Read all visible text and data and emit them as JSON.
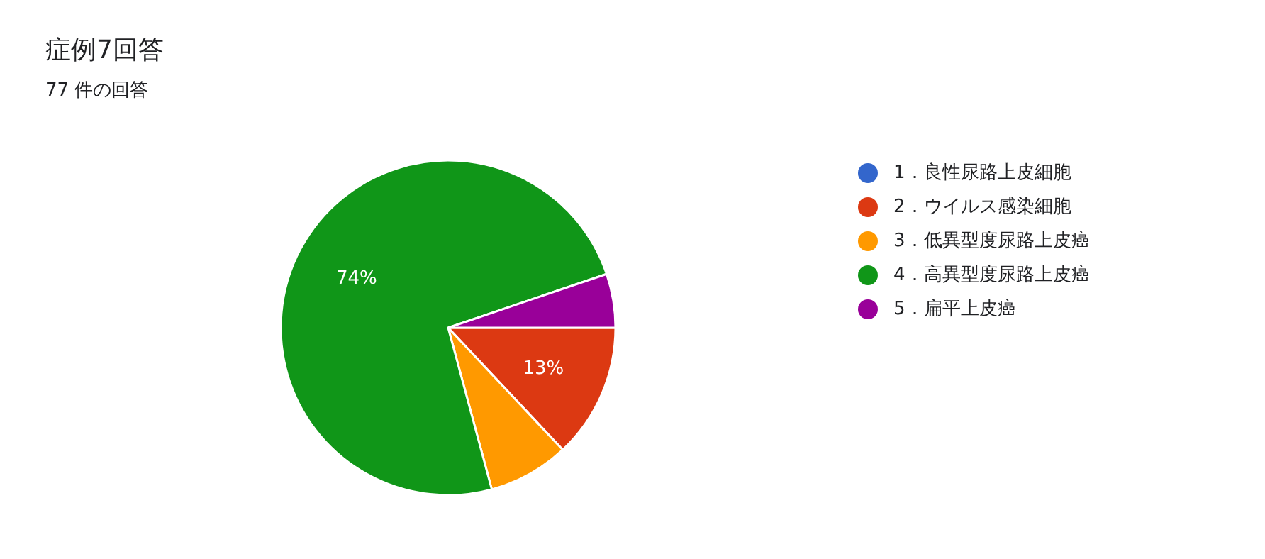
{
  "chart_data": {
    "type": "pie",
    "title": "症例7回答",
    "subtitle": "77 件の回答",
    "categories": [
      "1．良性尿路上皮細胞",
      "2．ウイルス感染細胞",
      "3．低異型度尿路上皮癌",
      "4．高異型度尿路上皮癌",
      "5．扁平上皮癌"
    ],
    "values": [
      0,
      13,
      7.8,
      74,
      5.2
    ],
    "colors": [
      "#3366cc",
      "#dc3912",
      "#ff9900",
      "#109618",
      "#990099"
    ],
    "value_labels": [
      null,
      "13%",
      null,
      "74%",
      null
    ],
    "legend": "right"
  }
}
